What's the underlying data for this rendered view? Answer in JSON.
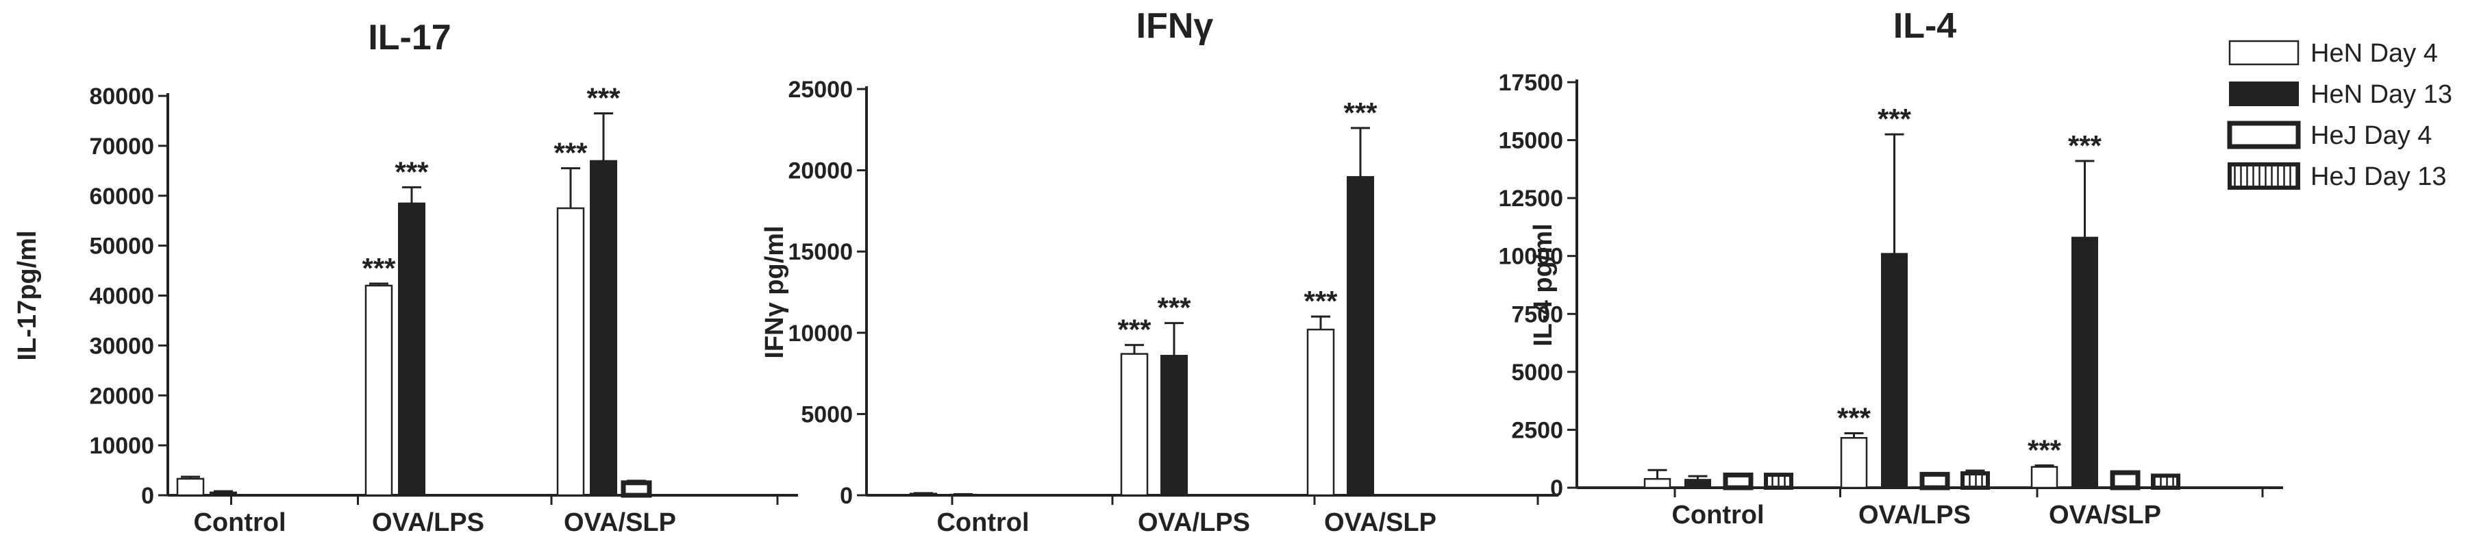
{
  "chart_data": [
    {
      "type": "bar",
      "title": "IL-17",
      "ylabel": "IL-17pg/ml",
      "ylim": [
        0,
        80000
      ],
      "yticks": [
        0,
        10000,
        20000,
        30000,
        40000,
        50000,
        60000,
        70000,
        80000
      ],
      "categories": [
        "Control",
        "OVA/LPS",
        "OVA/SLP"
      ],
      "series": [
        {
          "name": "HeN Day 4",
          "values": [
            3300,
            42000,
            57500
          ],
          "errors": [
            400,
            400,
            8000
          ]
        },
        {
          "name": "HeN Day 13",
          "values": [
            600,
            58500,
            67000
          ],
          "errors": [
            200,
            3200,
            9500
          ]
        },
        {
          "name": "HeJ Day 4",
          "values": [
            0,
            0,
            2500
          ],
          "errors": [
            0,
            0,
            400
          ]
        },
        {
          "name": "HeJ Day 13",
          "values": [
            0,
            0,
            0
          ],
          "errors": [
            0,
            0,
            0
          ]
        }
      ],
      "significance": [
        {
          "category": 1,
          "series": 0,
          "label": "***"
        },
        {
          "category": 1,
          "series": 1,
          "label": "***"
        },
        {
          "category": 2,
          "series": 0,
          "label": "***"
        },
        {
          "category": 2,
          "series": 1,
          "label": "***"
        }
      ]
    },
    {
      "type": "bar",
      "title": "IFNγ",
      "ylabel": "IFNγ pg/ml",
      "ylim": [
        0,
        25000
      ],
      "yticks": [
        0,
        5000,
        10000,
        15000,
        20000,
        25000
      ],
      "categories": [
        "Control",
        "OVA/LPS",
        "OVA/SLP"
      ],
      "series": [
        {
          "name": "HeN Day 4",
          "values": [
            100,
            8700,
            10200
          ],
          "errors": [
            30,
            550,
            800
          ]
        },
        {
          "name": "HeN Day 13",
          "values": [
            50,
            8600,
            19600
          ],
          "errors": [
            20,
            2000,
            3000
          ]
        },
        {
          "name": "HeJ Day 4",
          "values": [
            0,
            0,
            0
          ],
          "errors": [
            0,
            0,
            0
          ]
        },
        {
          "name": "HeJ Day 13",
          "values": [
            0,
            0,
            0
          ],
          "errors": [
            0,
            0,
            0
          ]
        }
      ],
      "significance": [
        {
          "category": 1,
          "series": 0,
          "label": "***"
        },
        {
          "category": 1,
          "series": 1,
          "label": "***"
        },
        {
          "category": 2,
          "series": 0,
          "label": "***"
        },
        {
          "category": 2,
          "series": 1,
          "label": "***"
        }
      ]
    },
    {
      "type": "bar",
      "title": "IL-4",
      "ylabel": "IL-4 pg/ml",
      "ylim": [
        0,
        17500
      ],
      "yticks": [
        0,
        2500,
        5000,
        7500,
        10000,
        12500,
        15000,
        17500
      ],
      "categories": [
        "Control",
        "OVA/LPS",
        "OVA/SLP"
      ],
      "series": [
        {
          "name": "HeN Day 4",
          "values": [
            380,
            2150,
            900
          ],
          "errors": [
            380,
            200,
            60
          ]
        },
        {
          "name": "HeN Day 13",
          "values": [
            350,
            10100,
            10800
          ],
          "errors": [
            150,
            5150,
            3300
          ]
        },
        {
          "name": "HeJ Day 4",
          "values": [
            550,
            580,
            650
          ],
          "errors": [
            40,
            40,
            40
          ]
        },
        {
          "name": "HeJ Day 13",
          "values": [
            560,
            620,
            520
          ],
          "errors": [
            40,
            120,
            40
          ]
        }
      ],
      "significance": [
        {
          "category": 1,
          "series": 0,
          "label": "***"
        },
        {
          "category": 1,
          "series": 1,
          "label": "***"
        },
        {
          "category": 2,
          "series": 0,
          "label": "***"
        },
        {
          "category": 2,
          "series": 1,
          "label": "***"
        }
      ]
    }
  ],
  "legend": {
    "position": "top-right",
    "entries": [
      {
        "label": "HeN Day 4",
        "style": "open"
      },
      {
        "label": "HeN Day 13",
        "style": "filled"
      },
      {
        "label": "HeJ Day 4",
        "style": "thick-outline"
      },
      {
        "label": "HeJ Day 13",
        "style": "hatched"
      }
    ]
  },
  "colors": {
    "bar_fill": "#222222",
    "bar_outline": "#222222",
    "background": "#ffffff"
  }
}
